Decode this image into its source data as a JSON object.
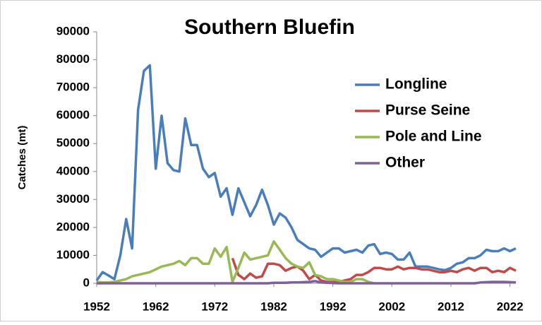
{
  "chart_data": {
    "type": "line",
    "title": "Southern Bluefin",
    "y_label": "Catches (mt)",
    "x": [
      1952,
      1953,
      1954,
      1955,
      1956,
      1957,
      1958,
      1959,
      1960,
      1961,
      1962,
      1963,
      1964,
      1965,
      1966,
      1967,
      1968,
      1969,
      1970,
      1971,
      1972,
      1973,
      1974,
      1975,
      1976,
      1977,
      1978,
      1979,
      1980,
      1981,
      1982,
      1983,
      1984,
      1985,
      1986,
      1987,
      1988,
      1989,
      1990,
      1991,
      1992,
      1993,
      1994,
      1995,
      1996,
      1997,
      1998,
      1999,
      2000,
      2001,
      2002,
      2003,
      2004,
      2005,
      2006,
      2007,
      2008,
      2009,
      2010,
      2011,
      2012,
      2013,
      2014,
      2015,
      2016,
      2017,
      2018,
      2019,
      2020,
      2021,
      2022,
      2023
    ],
    "series": [
      {
        "name": "Longline",
        "color": "#4a7ebb",
        "values": [
          1000,
          4000,
          2800,
          1500,
          10000,
          23000,
          12500,
          62000,
          76000,
          78000,
          41000,
          60000,
          43000,
          40500,
          40000,
          59000,
          49500,
          49500,
          41000,
          38000,
          39500,
          31000,
          34000,
          24500,
          34000,
          29000,
          24000,
          28000,
          33500,
          28000,
          21000,
          25000,
          23500,
          20000,
          15500,
          14000,
          12500,
          12000,
          9500,
          11000,
          12500,
          12500,
          11000,
          11500,
          12000,
          11000,
          13500,
          14000,
          10500,
          11000,
          10500,
          8500,
          8500,
          11000,
          6000,
          6000,
          6000,
          5500,
          5000,
          4700,
          5500,
          7000,
          7500,
          9000,
          9000,
          10000,
          12000,
          11500,
          11500,
          12500,
          11500,
          12500
        ]
      },
      {
        "name": "Purse Seine",
        "color": "#be4b48",
        "values": [
          null,
          null,
          null,
          null,
          null,
          null,
          null,
          null,
          null,
          null,
          null,
          null,
          null,
          null,
          null,
          null,
          null,
          null,
          null,
          null,
          null,
          null,
          null,
          9000,
          3000,
          1500,
          3500,
          2000,
          2500,
          7000,
          7000,
          6500,
          4500,
          5500,
          6000,
          4500,
          1500,
          3000,
          1000,
          500,
          500,
          500,
          1000,
          1500,
          3000,
          3000,
          4000,
          5500,
          5500,
          5000,
          5000,
          6000,
          5000,
          5500,
          5500,
          5000,
          5000,
          4500,
          4000,
          4000,
          4500,
          4000,
          5000,
          5500,
          4500,
          5500,
          5500,
          4000,
          4500,
          4000,
          5500,
          4500
        ]
      },
      {
        "name": "Pole and Line",
        "color": "#98b954",
        "values": [
          500,
          300,
          300,
          500,
          1000,
          1500,
          2500,
          3000,
          3500,
          4000,
          5000,
          6000,
          6500,
          7000,
          8000,
          6500,
          9000,
          9000,
          7000,
          7000,
          12500,
          9500,
          13000,
          500,
          5500,
          11000,
          8500,
          9000,
          9500,
          10000,
          15000,
          12000,
          9000,
          7000,
          6000,
          5500,
          7500,
          3000,
          2500,
          1500,
          1500,
          1000,
          500,
          500,
          1500,
          1500,
          500,
          0,
          null,
          null,
          null,
          null,
          null,
          null,
          null,
          null,
          null,
          null,
          null,
          null,
          null,
          null,
          null,
          null,
          null,
          null,
          null,
          null,
          null,
          null,
          null,
          null
        ]
      },
      {
        "name": "Other",
        "color": "#7d60a0",
        "values": [
          0,
          0,
          0,
          0,
          0,
          0,
          0,
          0,
          0,
          0,
          0,
          0,
          0,
          0,
          0,
          0,
          0,
          0,
          0,
          0,
          0,
          0,
          0,
          0,
          0,
          0,
          0,
          0,
          0,
          0,
          200,
          200,
          200,
          300,
          300,
          400,
          500,
          800,
          300,
          200,
          100,
          0,
          0,
          0,
          0,
          0,
          0,
          0,
          0,
          0,
          0,
          0,
          0,
          0,
          0,
          0,
          0,
          0,
          0,
          0,
          0,
          0,
          0,
          0,
          0,
          300,
          400,
          500,
          500,
          500,
          400,
          300
        ]
      }
    ],
    "xlim": [
      1952,
      2023
    ],
    "xticks": [
      1952,
      1962,
      1972,
      1982,
      1992,
      2002,
      2012,
      2022
    ],
    "ylim": [
      0,
      90000
    ],
    "yticks": [
      0,
      10000,
      20000,
      30000,
      40000,
      50000,
      60000,
      70000,
      80000,
      90000
    ],
    "grid": false,
    "legend": "right"
  }
}
